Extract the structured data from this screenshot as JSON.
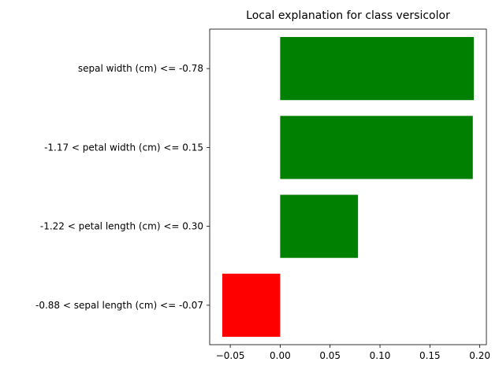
{
  "chart_data": {
    "type": "bar",
    "orientation": "horizontal",
    "title": "Local explanation for class versicolor",
    "xlabel": "",
    "ylabel": "",
    "categories": [
      "sepal width (cm) <= -0.78",
      "-1.17 < petal width (cm) <= 0.15",
      "-1.22 < petal length (cm) <= 0.30",
      "-0.88 < sepal length (cm) <= -0.07"
    ],
    "values": [
      0.194,
      0.193,
      0.078,
      -0.058
    ],
    "bar_colors": [
      "#008000",
      "#008000",
      "#008000",
      "#ff0000"
    ],
    "xlim": [
      -0.0706,
      0.2066
    ],
    "xticks": [
      -0.05,
      0.0,
      0.05,
      0.1,
      0.15,
      0.2
    ],
    "xtick_labels": [
      "−0.05",
      "0.00",
      "0.05",
      "0.10",
      "0.15",
      "0.20"
    ],
    "grid": false,
    "legend": "none"
  }
}
